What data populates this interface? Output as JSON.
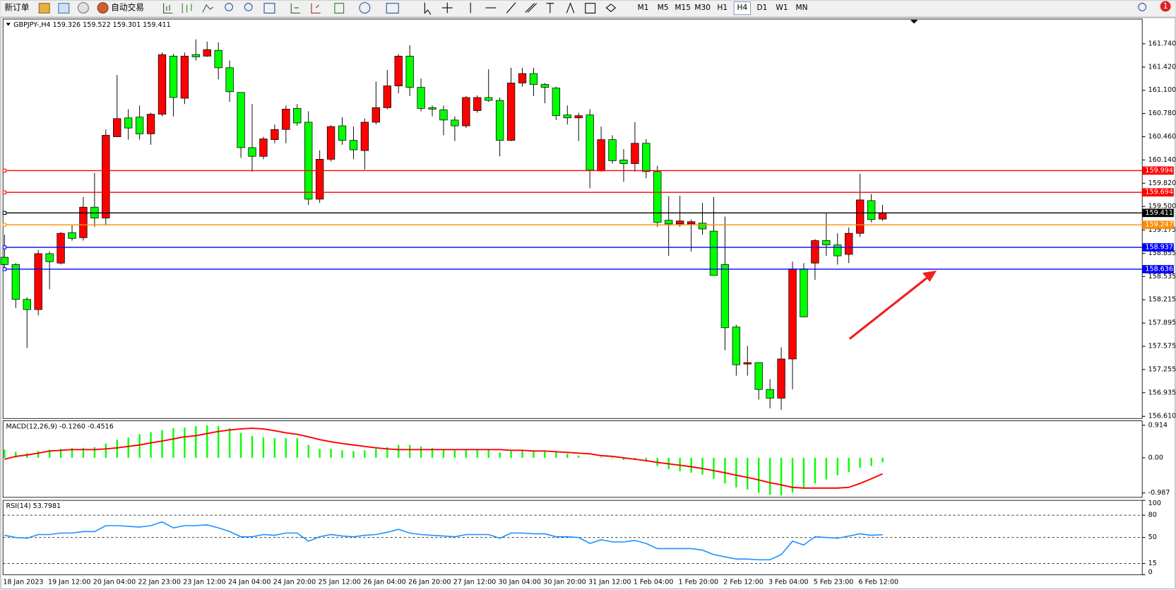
{
  "toolbar": {
    "new_order": "新订单",
    "auto_trading": "自动交易",
    "timeframes": [
      "M1",
      "M5",
      "M15",
      "M30",
      "H1",
      "H4",
      "D1",
      "W1",
      "MN"
    ],
    "active_timeframe": "H4",
    "notifications": 1
  },
  "chart_data": [
    {
      "type": "candlestick",
      "title": "GBPJPY-,H4 159.326 159.522 159.301 159.411",
      "up_color": "#ff0000",
      "down_color": "#00ff00",
      "categories": [
        "18 Jan 2023",
        null,
        null,
        null,
        "19 Jan 12:00",
        null,
        null,
        null,
        "20 Jan 04:00",
        null,
        null,
        null,
        "22 Jan 23:00",
        null,
        null,
        null,
        "23 Jan 12:00",
        null,
        null,
        null,
        "24 Jan 04:00",
        null,
        null,
        null,
        "24 Jan 20:00",
        null,
        null,
        null,
        "25 Jan 12:00",
        null,
        null,
        null,
        "26 Jan 04:00",
        null,
        null,
        null,
        "26 Jan 20:00",
        null,
        null,
        null,
        "27 Jan 12:00",
        null,
        null,
        null,
        "30 Jan 04:00",
        null,
        null,
        null,
        "30 Jan 20:00",
        null,
        null,
        null,
        "31 Jan 12:00",
        null,
        null,
        null,
        "1 Feb 04:00",
        null,
        null,
        null,
        "1 Feb 20:00",
        null,
        null,
        null,
        "2 Feb 12:00",
        null,
        null,
        null,
        "3 Feb 04:00",
        null,
        null,
        null,
        "5 Feb 23:00",
        null,
        null,
        null,
        "6 Feb 12:00",
        null,
        null
      ],
      "open": [
        158.8,
        158.7,
        158.22,
        158.08,
        158.85,
        158.72,
        159.14,
        159.07,
        159.49,
        159.34,
        160.46,
        160.72,
        160.73,
        160.5,
        160.77,
        161.57,
        160.99,
        161.59,
        161.57,
        161.65,
        161.41,
        161.07,
        160.31,
        160.19,
        160.42,
        160.56,
        160.85,
        160.66,
        159.6,
        160.15,
        160.61,
        160.41,
        160.27,
        160.66,
        160.86,
        161.16,
        161.57,
        161.14,
        160.86,
        160.83,
        160.69,
        160.61,
        160.82,
        161.0,
        160.96,
        160.41,
        161.2,
        161.33,
        161.18,
        161.13,
        160.76,
        160.72,
        160.76,
        159.99,
        160.42,
        160.14,
        160.09,
        160.37,
        159.98,
        159.31,
        159.26,
        159.26,
        159.27,
        159.16,
        158.7,
        157.84,
        157.33,
        157.35,
        156.98,
        156.86,
        157.4,
        158.64,
        158.72,
        159.03,
        158.97,
        158.84,
        159.13,
        159.58,
        159.326
      ],
      "high": [
        159.11,
        158.72,
        158.25,
        158.9,
        158.88,
        159.15,
        159.24,
        159.63,
        159.96,
        160.56,
        161.31,
        160.84,
        160.89,
        160.79,
        161.62,
        161.6,
        161.62,
        161.8,
        161.77,
        161.76,
        161.51,
        161.07,
        160.91,
        160.46,
        160.63,
        160.89,
        160.91,
        160.81,
        160.27,
        160.62,
        160.73,
        160.6,
        160.71,
        161.22,
        161.38,
        161.6,
        161.72,
        161.26,
        160.89,
        160.89,
        160.74,
        161.02,
        161.03,
        161.39,
        161.0,
        161.41,
        161.41,
        161.41,
        161.2,
        161.15,
        160.89,
        160.79,
        160.84,
        160.6,
        160.48,
        160.29,
        160.66,
        160.43,
        160.06,
        159.64,
        159.65,
        159.32,
        159.55,
        159.63,
        159.36,
        157.87,
        157.58,
        157.35,
        157.12,
        157.56,
        158.74,
        158.72,
        159.05,
        159.41,
        159.13,
        159.21,
        159.95,
        159.67,
        159.522
      ],
      "low": [
        158.62,
        158.1,
        157.55,
        158.0,
        158.36,
        158.7,
        159.03,
        159.03,
        159.22,
        159.24,
        160.46,
        160.42,
        160.42,
        160.35,
        160.74,
        160.74,
        160.91,
        161.51,
        161.56,
        161.25,
        160.94,
        160.17,
        159.98,
        160.15,
        160.37,
        160.37,
        160.61,
        159.52,
        159.55,
        160.12,
        160.35,
        160.15,
        160.01,
        160.63,
        160.84,
        161.06,
        161.02,
        160.81,
        160.74,
        160.48,
        160.4,
        160.58,
        160.79,
        160.94,
        160.19,
        160.4,
        161.15,
        161.02,
        160.92,
        160.69,
        160.63,
        160.4,
        159.75,
        159.98,
        160.09,
        159.84,
        159.98,
        159.89,
        159.22,
        158.82,
        159.22,
        158.88,
        159.11,
        158.55,
        157.52,
        157.17,
        157.17,
        156.84,
        156.72,
        156.7,
        156.98,
        157.98,
        158.49,
        158.82,
        158.7,
        158.72,
        159.08,
        159.28,
        159.301
      ],
      "close": [
        158.7,
        158.22,
        158.08,
        158.85,
        158.74,
        159.13,
        159.06,
        159.49,
        159.34,
        160.48,
        160.71,
        160.58,
        160.5,
        160.77,
        161.59,
        161.0,
        161.57,
        161.56,
        161.66,
        161.41,
        161.08,
        160.31,
        160.19,
        160.43,
        160.56,
        160.84,
        160.65,
        159.6,
        160.15,
        160.6,
        160.41,
        160.28,
        160.66,
        160.86,
        161.16,
        161.57,
        161.14,
        160.85,
        160.84,
        160.69,
        160.61,
        161.0,
        161.0,
        160.96,
        160.41,
        161.2,
        161.33,
        161.18,
        161.14,
        160.75,
        160.72,
        160.75,
        160.0,
        160.42,
        160.13,
        160.09,
        160.37,
        159.98,
        159.28,
        159.26,
        159.3,
        159.29,
        159.19,
        158.55,
        157.83,
        157.32,
        157.35,
        156.98,
        156.86,
        157.4,
        158.64,
        157.98,
        159.03,
        158.97,
        158.82,
        159.13,
        159.59,
        159.32,
        159.411
      ],
      "levels": [
        {
          "value": 159.994,
          "color": "#ff0000"
        },
        {
          "value": 159.694,
          "color": "#ff0000"
        },
        {
          "value": 159.411,
          "color": "#000000"
        },
        {
          "value": 159.247,
          "color": "#ff8c00"
        },
        {
          "value": 158.937,
          "color": "#0000ff"
        },
        {
          "value": 158.636,
          "color": "#0000ff"
        }
      ],
      "ylim": [
        156.58,
        162.08
      ],
      "yticks": [
        {
          "value": 161.74,
          "label": "161.740"
        },
        {
          "value": 161.42,
          "label": "161.420"
        },
        {
          "value": 161.1,
          "label": "161.100"
        },
        {
          "value": 160.78,
          "label": "160.780"
        },
        {
          "value": 160.46,
          "label": "160.460"
        },
        {
          "value": 160.14,
          "label": "160.140"
        },
        {
          "value": 159.82,
          "label": "159.820"
        },
        {
          "value": 159.5,
          "label": "159.500"
        },
        159.175,
        158.855,
        158.535,
        158.215,
        157.895,
        157.575,
        157.255,
        156.935,
        {
          "value": 156.61,
          "label": "156.610"
        }
      ]
    },
    {
      "type": "macd",
      "title": "MACD(12,26,9) -0.1260 -0.4516",
      "histogram": {
        "color": "#00ff00",
        "values": [
          0.23,
          0.17,
          0.13,
          0.19,
          0.23,
          0.25,
          0.28,
          0.28,
          0.3,
          0.4,
          0.51,
          0.57,
          0.66,
          0.72,
          0.78,
          0.83,
          0.85,
          0.89,
          0.91,
          0.89,
          0.83,
          0.7,
          0.61,
          0.57,
          0.55,
          0.55,
          0.55,
          0.36,
          0.25,
          0.25,
          0.21,
          0.19,
          0.21,
          0.25,
          0.3,
          0.36,
          0.36,
          0.32,
          0.28,
          0.23,
          0.21,
          0.23,
          0.23,
          0.23,
          0.15,
          0.19,
          0.21,
          0.21,
          0.19,
          0.15,
          0.11,
          0.06,
          0.01,
          0.02,
          -0.02,
          -0.06,
          -0.06,
          -0.11,
          -0.23,
          -0.32,
          -0.38,
          -0.42,
          -0.47,
          -0.59,
          -0.72,
          -0.83,
          -0.89,
          -0.98,
          -1.04,
          -1.06,
          -0.98,
          -0.83,
          -0.72,
          -0.61,
          -0.49,
          -0.4,
          -0.28,
          -0.23,
          -0.126
        ]
      },
      "signal": {
        "color": "#ff0000",
        "values": [
          -0.04,
          0.04,
          0.08,
          0.13,
          0.19,
          0.21,
          0.23,
          0.23,
          0.23,
          0.25,
          0.28,
          0.32,
          0.36,
          0.42,
          0.47,
          0.53,
          0.59,
          0.62,
          0.68,
          0.74,
          0.78,
          0.81,
          0.83,
          0.81,
          0.76,
          0.7,
          0.66,
          0.59,
          0.51,
          0.45,
          0.4,
          0.36,
          0.32,
          0.28,
          0.25,
          0.23,
          0.23,
          0.23,
          0.23,
          0.23,
          0.23,
          0.23,
          0.23,
          0.23,
          0.23,
          0.21,
          0.21,
          0.19,
          0.19,
          0.17,
          0.15,
          0.13,
          0.11,
          0.06,
          0.04,
          0.0,
          -0.04,
          -0.08,
          -0.13,
          -0.17,
          -0.21,
          -0.25,
          -0.3,
          -0.36,
          -0.42,
          -0.49,
          -0.55,
          -0.62,
          -0.7,
          -0.76,
          -0.83,
          -0.85,
          -0.85,
          -0.85,
          -0.85,
          -0.83,
          -0.72,
          -0.59,
          -0.4516
        ]
      },
      "ylim": [
        -1.11,
        1.04
      ],
      "yticks": [
        0.914,
        {
          "value": 0,
          "label": "0.00"
        },
        -0.987
      ]
    },
    {
      "type": "line",
      "title": "RSI(14) 53.7981",
      "color": "#1e90ff",
      "values": [
        53,
        50,
        49,
        54,
        54,
        56,
        56,
        58,
        58,
        66,
        66,
        65,
        64,
        66,
        71,
        63,
        66,
        66,
        67,
        63,
        58,
        51,
        51,
        54,
        53,
        56,
        56,
        45,
        51,
        54,
        52,
        51,
        53,
        54,
        57,
        61,
        56,
        54,
        53,
        52,
        51,
        54,
        54,
        54,
        49,
        56,
        56,
        55,
        55,
        51,
        51,
        50,
        42,
        47,
        44,
        44,
        46,
        42,
        35,
        35,
        35,
        35,
        33,
        27,
        24,
        21,
        21,
        20,
        20,
        27,
        45,
        40,
        51,
        50,
        49,
        52,
        55,
        53,
        53.7981
      ],
      "ylim": [
        0,
        100
      ],
      "yticks": [
        100,
        80,
        50,
        15,
        0
      ],
      "level_lines": true
    }
  ]
}
